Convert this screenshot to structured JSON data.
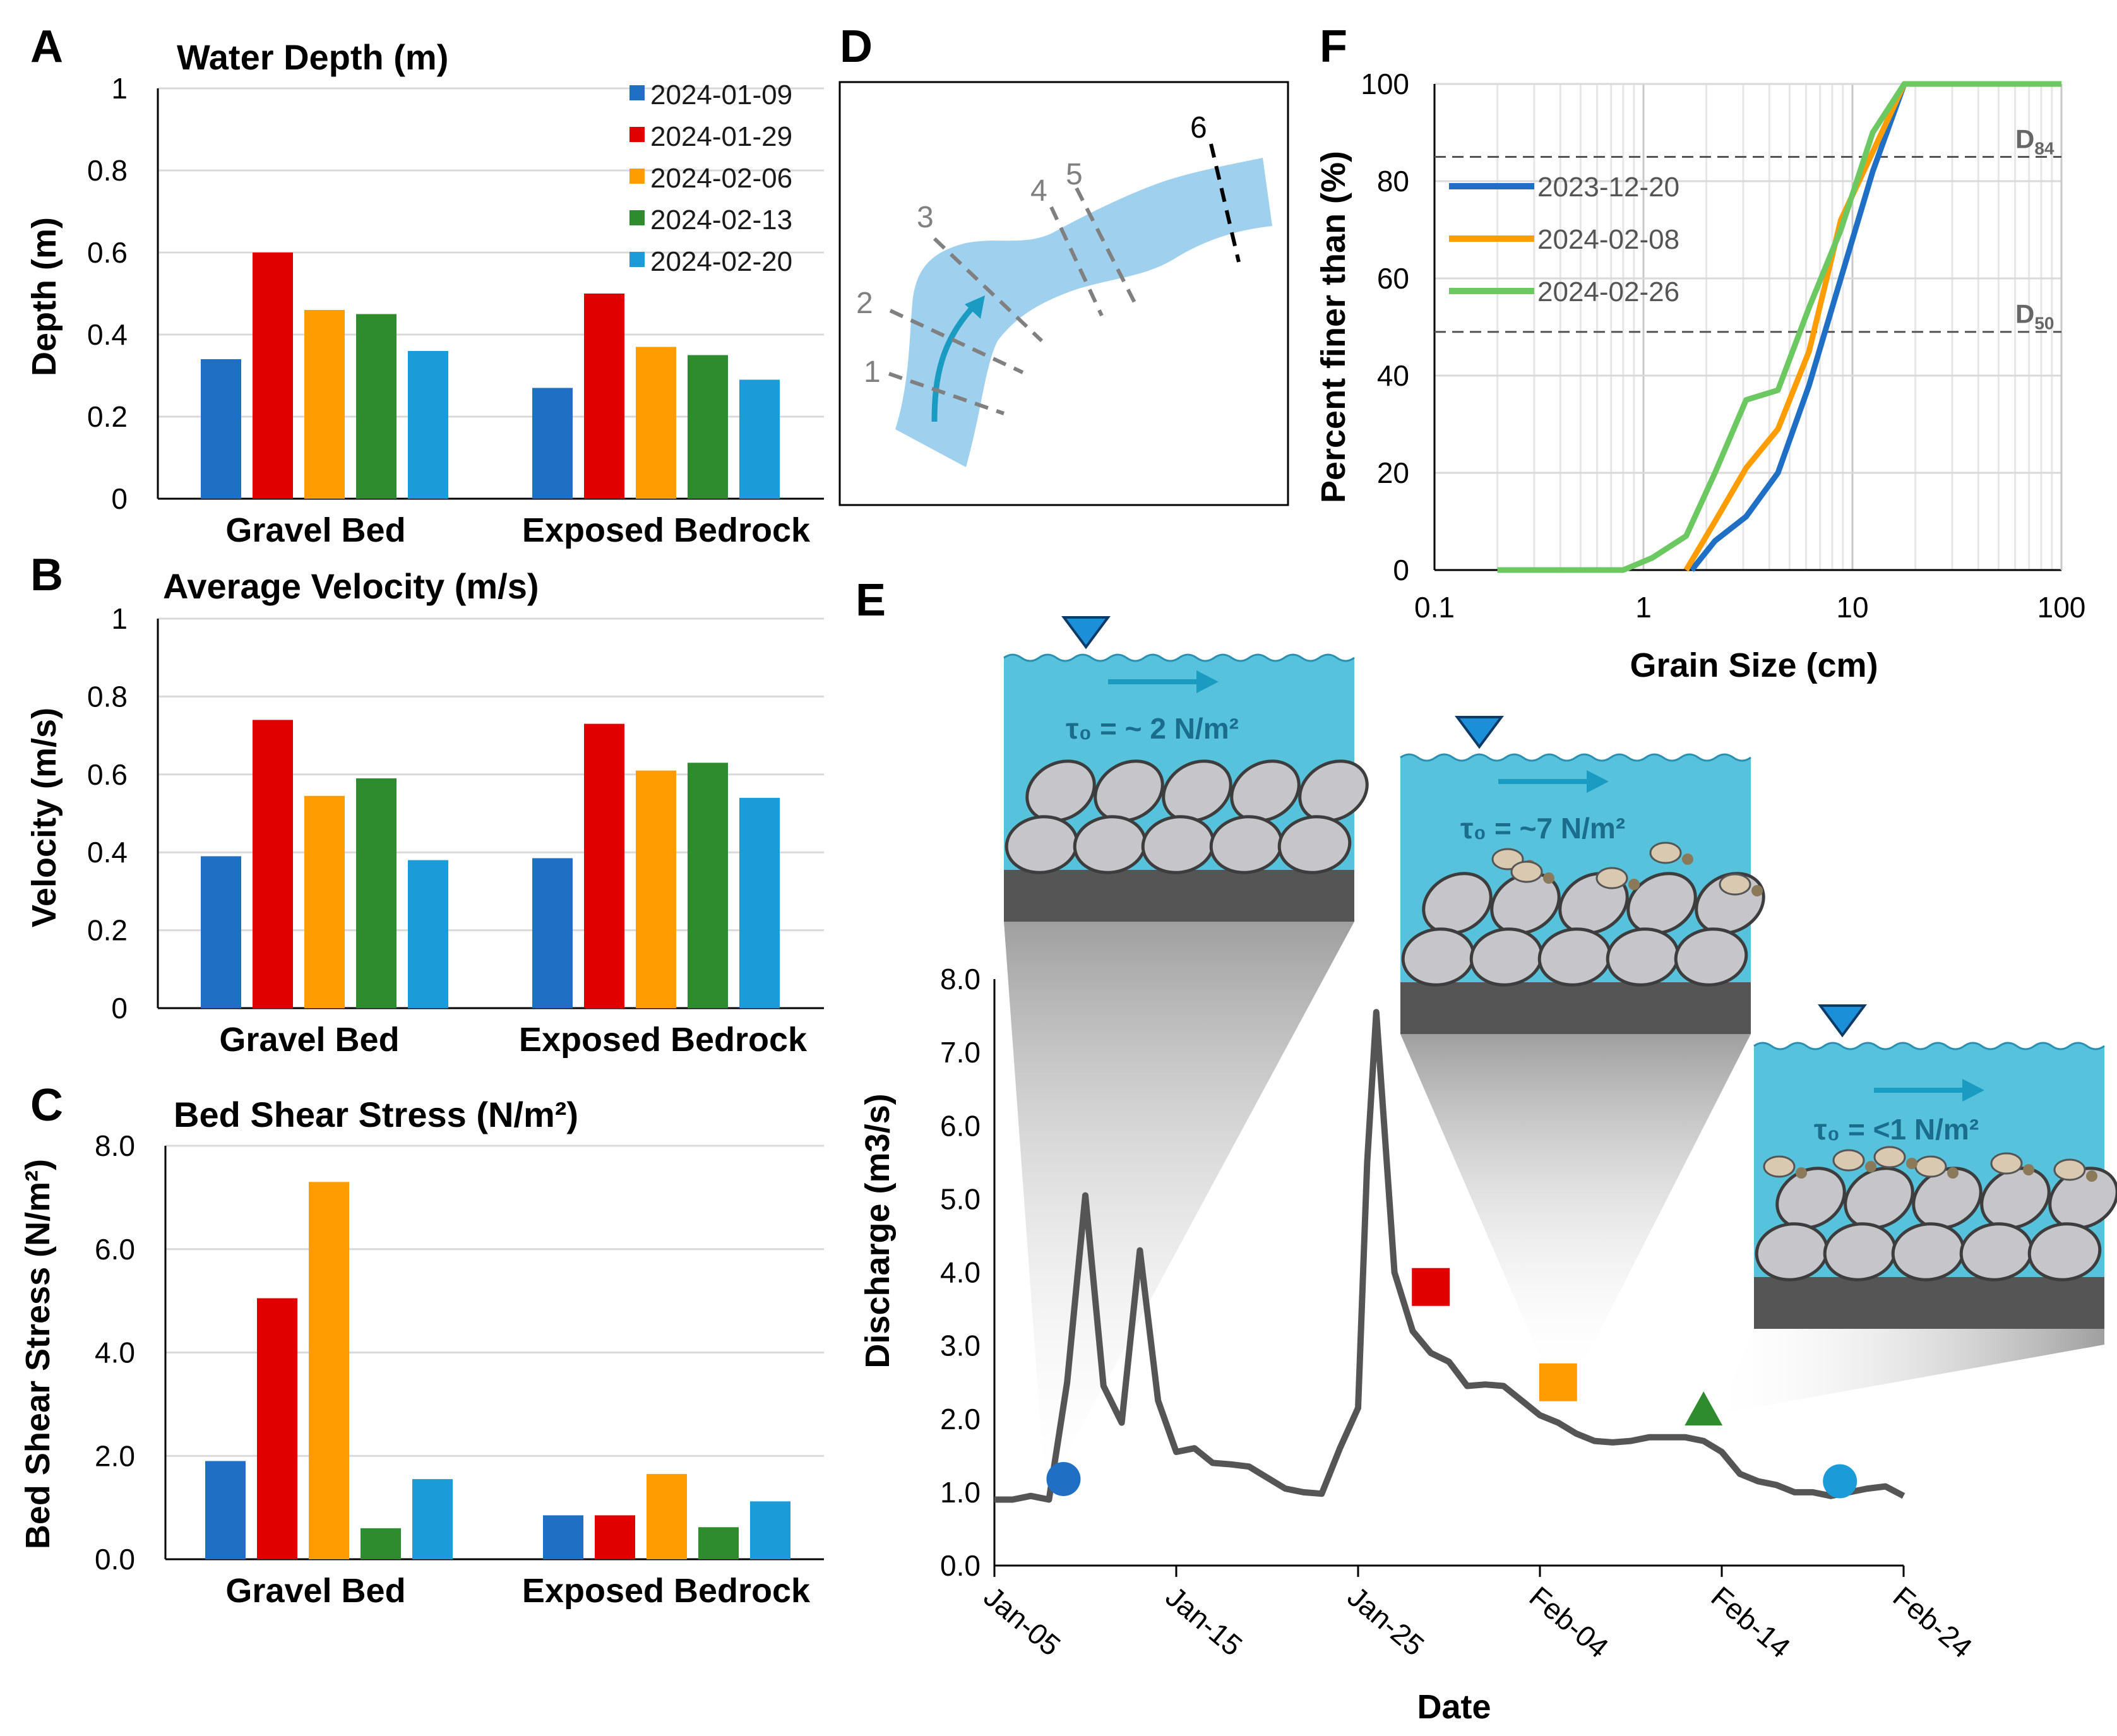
{
  "panels": {
    "A": "A",
    "B": "B",
    "C": "C",
    "D": "D",
    "E": "E",
    "F": "F"
  },
  "colors": {
    "date_1": "#1f6fc4",
    "date_2": "#e00000",
    "date_3": "#ff9d00",
    "date_4": "#2e8b2e",
    "date_5": "#1b9cd8",
    "water": "#56c2dc",
    "bedrock": "#555555",
    "hydrograph": "#555555",
    "channel": "#9fd0ee"
  },
  "chart_data": [
    {
      "id": "A",
      "type": "bar",
      "title": "Water Depth (m)",
      "ylabel": "Depth (m)",
      "xlabel": "",
      "categories": [
        "Gravel Bed",
        "Exposed Bedrock"
      ],
      "ylim": [
        0,
        1
      ],
      "yticks": [
        "0",
        "0.2",
        "0.4",
        "0.6",
        "0.8",
        "1"
      ],
      "series": [
        {
          "name": "2024-01-09",
          "values": [
            0.34,
            0.27
          ]
        },
        {
          "name": "2024-01-29",
          "values": [
            0.6,
            0.5
          ]
        },
        {
          "name": "2024-02-06",
          "values": [
            0.46,
            0.37
          ]
        },
        {
          "name": "2024-02-13",
          "values": [
            0.45,
            0.35
          ]
        },
        {
          "name": "2024-02-20",
          "values": [
            0.36,
            0.29
          ]
        }
      ],
      "legend": "top-right"
    },
    {
      "id": "B",
      "type": "bar",
      "title": "Average Velocity (m/s)",
      "ylabel": "Velocity (m/s)",
      "xlabel": "",
      "categories": [
        "Gravel Bed",
        "Exposed Bedrock"
      ],
      "ylim": [
        0,
        1
      ],
      "yticks": [
        "0",
        "0.2",
        "0.4",
        "0.6",
        "0.8",
        "1"
      ],
      "series": [
        {
          "name": "2024-01-09",
          "values": [
            0.39,
            0.385
          ]
        },
        {
          "name": "2024-01-29",
          "values": [
            0.74,
            0.73
          ]
        },
        {
          "name": "2024-02-06",
          "values": [
            0.545,
            0.61
          ]
        },
        {
          "name": "2024-02-13",
          "values": [
            0.59,
            0.63
          ]
        },
        {
          "name": "2024-02-20",
          "values": [
            0.38,
            0.54
          ]
        }
      ]
    },
    {
      "id": "C",
      "type": "bar",
      "title": "Bed Shear Stress (N/m²)",
      "ylabel": "Bed Shear Stress (N/m²)",
      "xlabel": "",
      "categories": [
        "Gravel Bed",
        "Exposed Bedrock"
      ],
      "ylim": [
        0,
        8
      ],
      "yticks": [
        "0.0",
        "2.0",
        "4.0",
        "6.0",
        "8.0"
      ],
      "series": [
        {
          "name": "2024-01-09",
          "values": [
            1.9,
            0.85
          ]
        },
        {
          "name": "2024-01-29",
          "values": [
            5.05,
            0.85
          ]
        },
        {
          "name": "2024-02-06",
          "values": [
            7.3,
            1.65
          ]
        },
        {
          "name": "2024-02-13",
          "values": [
            0.6,
            0.62
          ]
        },
        {
          "name": "2024-02-20",
          "values": [
            1.55,
            1.12
          ]
        }
      ]
    },
    {
      "id": "D",
      "type": "diagram",
      "section_labels": [
        "1",
        "2",
        "3",
        "4",
        "5",
        "6"
      ]
    },
    {
      "id": "E",
      "type": "line",
      "ylabel": "Discharge (m3/s)",
      "xlabel": "Date",
      "ylim": [
        0,
        8
      ],
      "yticks": [
        "0.0",
        "1.0",
        "2.0",
        "3.0",
        "4.0",
        "5.0",
        "6.0",
        "7.0",
        "8.0"
      ],
      "xlim": [
        0,
        50
      ],
      "xticks": [
        {
          "day": 0,
          "label": "Jan-05"
        },
        {
          "day": 10,
          "label": "Jan-15"
        },
        {
          "day": 20,
          "label": "Jan-25"
        },
        {
          "day": 30,
          "label": "Feb-04"
        },
        {
          "day": 40,
          "label": "Feb-14"
        },
        {
          "day": 50,
          "label": "Feb-24"
        }
      ],
      "series": [
        {
          "name": "Discharge",
          "day": [
            0,
            1,
            2,
            3,
            4,
            5,
            6,
            7,
            8,
            9,
            10,
            11,
            12,
            13,
            14,
            15,
            16,
            17,
            18,
            19,
            20,
            20.5,
            21,
            22,
            23,
            24,
            25,
            26,
            27,
            28,
            29,
            30,
            31,
            32,
            33,
            34,
            35,
            36,
            37,
            38,
            39,
            40,
            41,
            42,
            43,
            44,
            45,
            46,
            47,
            48,
            49,
            50
          ],
          "values": [
            0.9,
            0.9,
            0.95,
            0.9,
            2.5,
            5.05,
            2.45,
            1.95,
            4.3,
            2.25,
            1.55,
            1.6,
            1.4,
            1.38,
            1.35,
            1.2,
            1.05,
            1.0,
            0.98,
            1.6,
            2.15,
            5.5,
            7.55,
            4.0,
            3.2,
            2.9,
            2.78,
            2.45,
            2.47,
            2.45,
            2.25,
            2.05,
            1.95,
            1.8,
            1.7,
            1.68,
            1.7,
            1.75,
            1.75,
            1.75,
            1.7,
            1.55,
            1.25,
            1.15,
            1.1,
            1.0,
            1.0,
            0.95,
            1.0,
            1.05,
            1.08,
            0.95
          ]
        }
      ],
      "markers": [
        {
          "name": "2024-01-09",
          "shape": "circle",
          "day": 3.8,
          "value": 1.18
        },
        {
          "name": "2024-01-29",
          "shape": "square",
          "day": 24.0,
          "value": 3.8
        },
        {
          "name": "2024-02-06",
          "shape": "square",
          "day": 31.0,
          "value": 2.5
        },
        {
          "name": "2024-02-13",
          "shape": "triangle",
          "day": 39.0,
          "value": 2.1
        },
        {
          "name": "2024-02-20",
          "shape": "circle",
          "day": 46.5,
          "value": 1.15
        }
      ],
      "insets": [
        {
          "tau": "τ₀ = ~ 2 N/m²"
        },
        {
          "tau": "τ₀ = ~7 N/m²"
        },
        {
          "tau": "τ₀ = <1 N/m²"
        }
      ]
    },
    {
      "id": "F",
      "type": "line",
      "xscale": "log",
      "ylabel": "Percent finer than (%)",
      "xlabel": "Grain Size (cm)",
      "ylim": [
        0,
        100
      ],
      "yticks": [
        "0",
        "20",
        "40",
        "60",
        "80",
        "100"
      ],
      "xlim": [
        0.1,
        100
      ],
      "xticks": [
        {
          "value": 0.1,
          "label": "0.1"
        },
        {
          "value": 1,
          "label": "1"
        },
        {
          "value": 10,
          "label": "10"
        },
        {
          "value": 100,
          "label": "100"
        }
      ],
      "reference_lines": [
        {
          "label": "D84",
          "base": "D",
          "sub": "84",
          "value": 85
        },
        {
          "label": "D50",
          "base": "D",
          "sub": "50",
          "value": 49
        }
      ],
      "series": [
        {
          "name": "2023-12-20",
          "x": [
            1.7,
            2.2,
            3.1,
            4.4,
            6.2,
            8.8,
            12.5,
            17.7,
            100
          ],
          "values": [
            0,
            6,
            11,
            20,
            38,
            60,
            82,
            100,
            100
          ]
        },
        {
          "name": "2024-02-08",
          "x": [
            1.6,
            2.2,
            3.1,
            4.4,
            6.2,
            8.8,
            12.5,
            17.7,
            100
          ],
          "values": [
            0,
            10,
            21,
            29,
            45,
            72,
            86,
            100,
            100
          ]
        },
        {
          "name": "2024-02-26",
          "x": [
            0.2,
            0.8,
            1.1,
            1.6,
            2.2,
            3.1,
            4.4,
            6.2,
            8.8,
            12.5,
            17.7,
            100
          ],
          "values": [
            0,
            0,
            2.5,
            7,
            20,
            35,
            37,
            54,
            70,
            90,
            100,
            100
          ]
        }
      ],
      "legend": "left"
    }
  ]
}
